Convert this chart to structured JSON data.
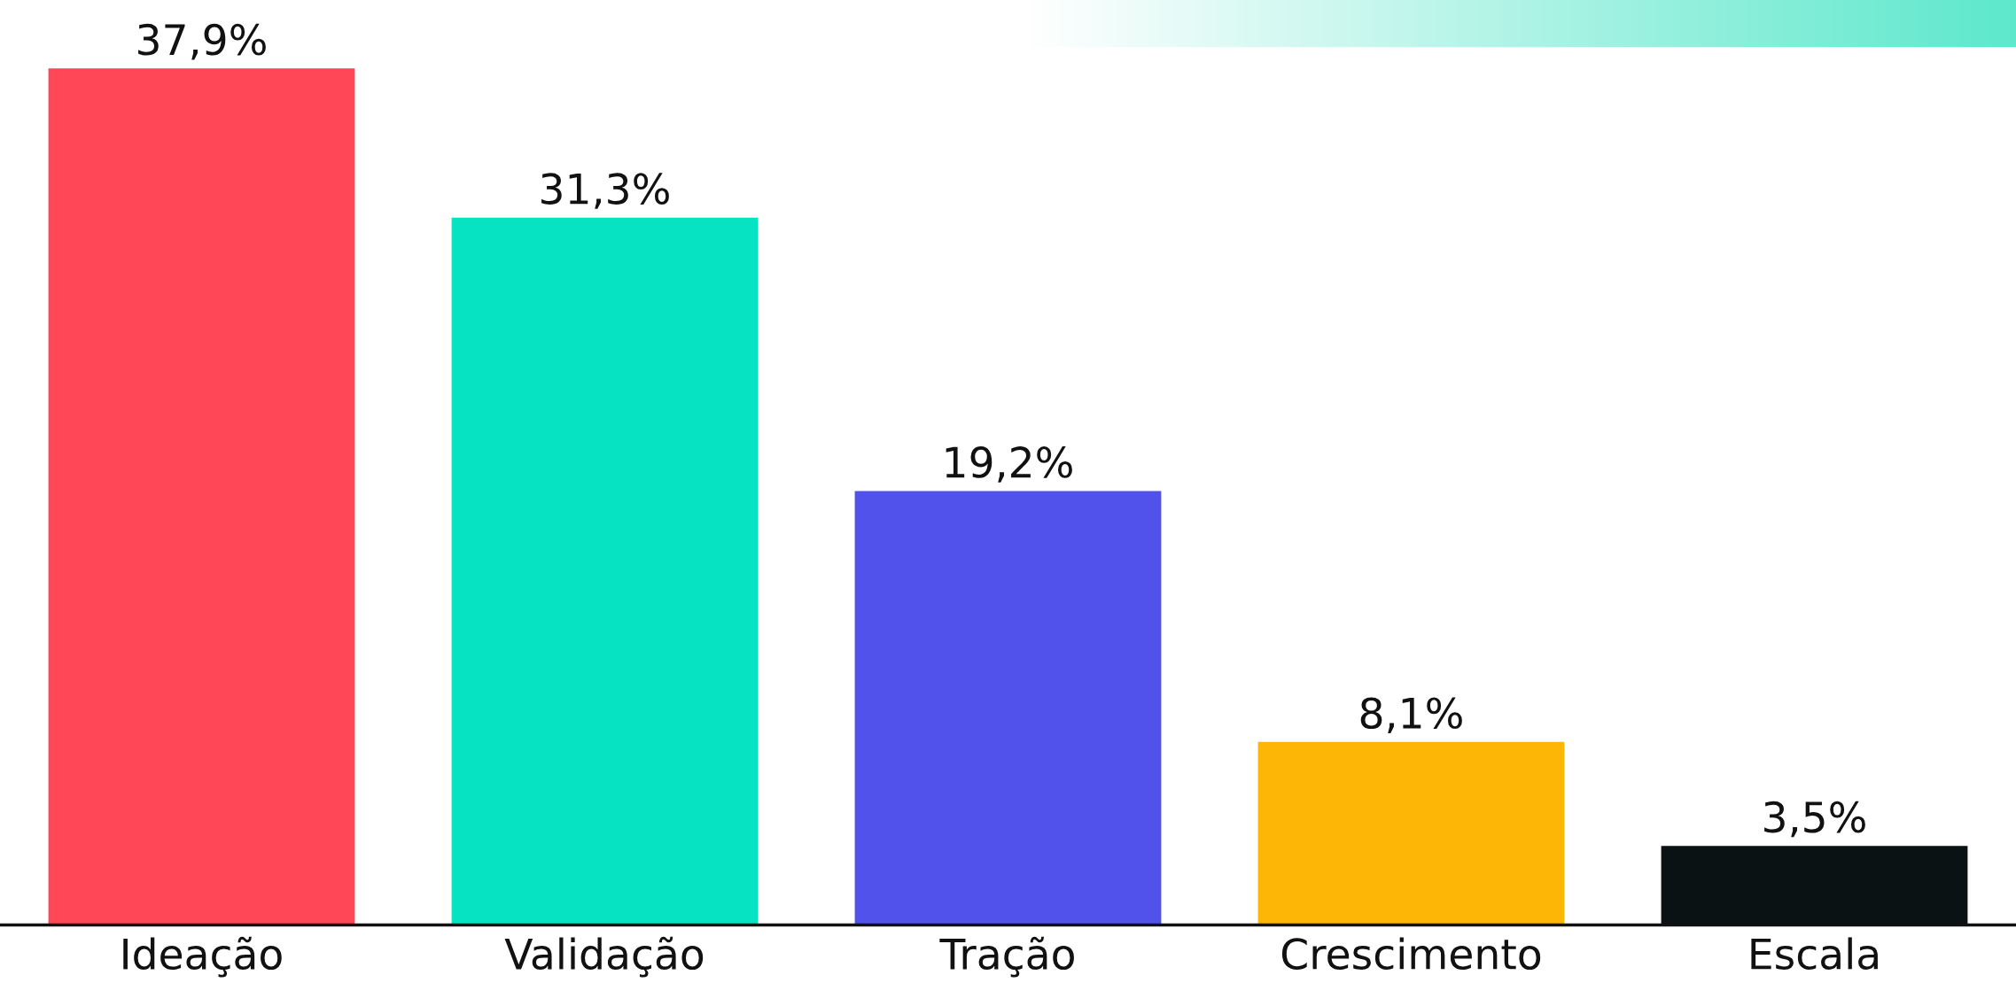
{
  "chart_data": {
    "type": "bar",
    "categories": [
      "Ideação",
      "Validação",
      "Tração",
      "Crescimento",
      "Escala"
    ],
    "values": [
      37.9,
      31.3,
      19.2,
      8.1,
      3.5
    ],
    "colors": [
      "#ff4757",
      "#05e3c3",
      "#5152eb",
      "#fdb606",
      "#0a1214"
    ],
    "value_labels": [
      "37,9%",
      "31,3%",
      "19,2%",
      "8,1%",
      "3,5%"
    ],
    "grid": false
  }
}
